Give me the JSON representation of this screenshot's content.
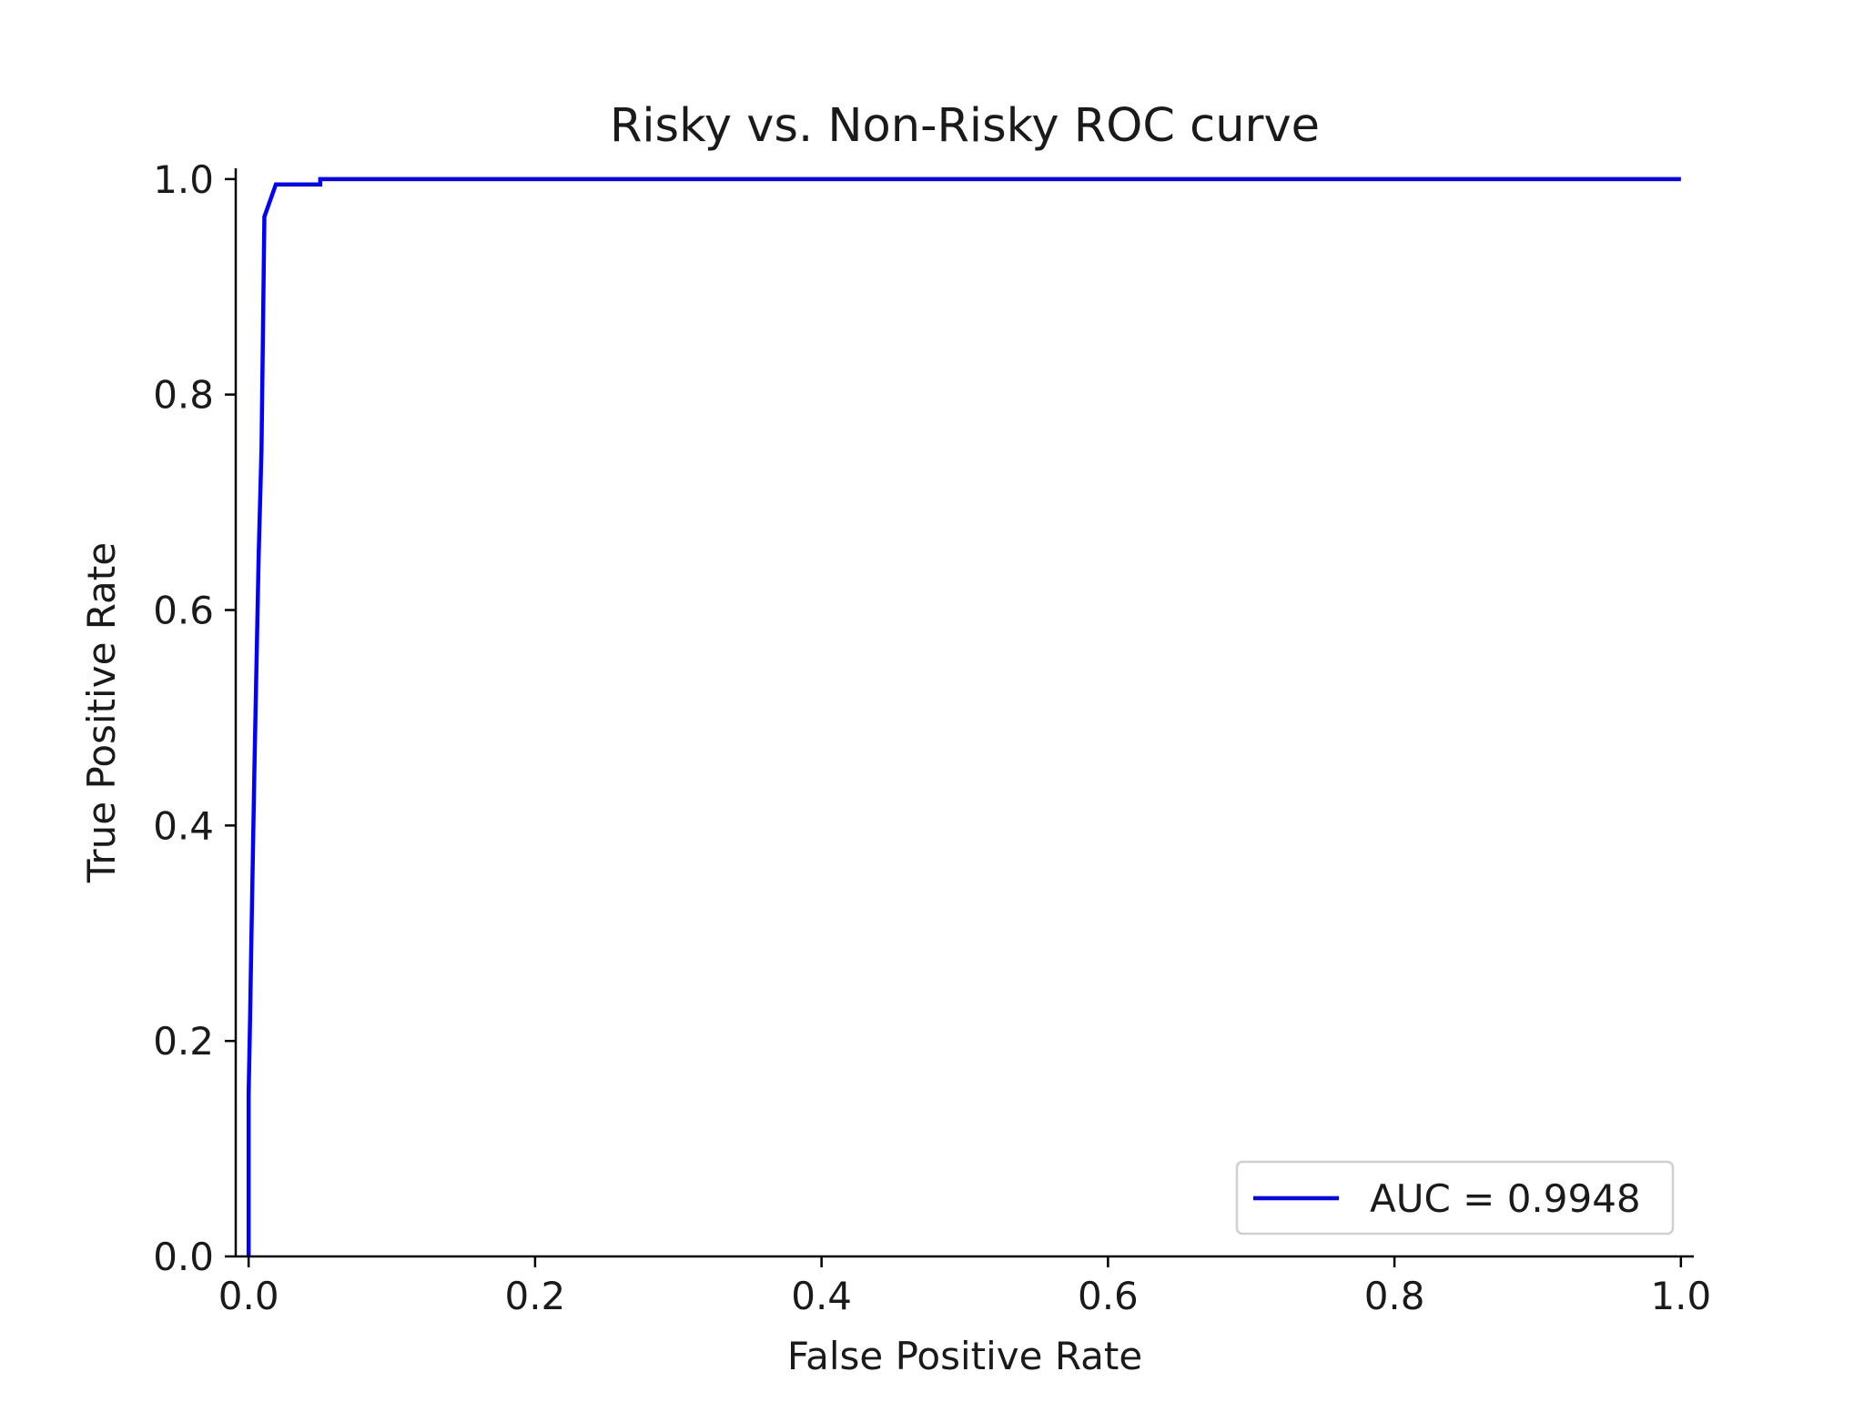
{
  "chart_data": {
    "type": "line",
    "title": "Risky vs. Non-Risky ROC curve",
    "xlabel": "False Positive Rate",
    "ylabel": "True Positive Rate",
    "xlim": [
      -0.009,
      1.009
    ],
    "ylim": [
      0.0,
      1.01
    ],
    "xticks": [
      "0.0",
      "0.2",
      "0.4",
      "0.6",
      "0.8",
      "1.0"
    ],
    "yticks": [
      "0.0",
      "0.2",
      "0.4",
      "0.6",
      "0.8",
      "1.0"
    ],
    "grid": false,
    "legend_position": "lower-right",
    "series": [
      {
        "name": "AUC = 0.9948",
        "color": "#0000ff",
        "x": [
          0.0,
          0.0,
          0.001,
          0.002,
          0.004,
          0.007,
          0.009,
          0.011,
          0.019,
          0.027,
          0.05,
          0.05,
          0.06,
          1.0
        ],
        "y": [
          0.0,
          0.15,
          0.22,
          0.3,
          0.45,
          0.65,
          0.75,
          0.965,
          0.995,
          0.995,
          0.995,
          1.0,
          1.0,
          1.0
        ]
      }
    ]
  }
}
